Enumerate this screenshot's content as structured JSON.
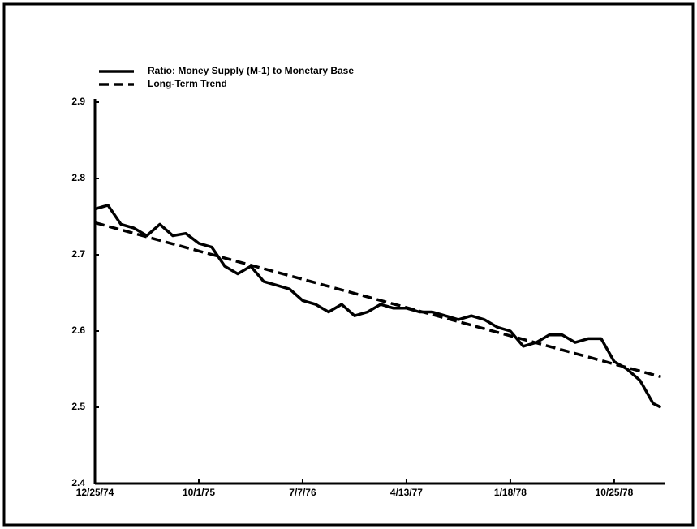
{
  "chart_data": {
    "type": "line",
    "series": [
      {
        "name": "Ratio: Money Supply (M-1) to Monetary Base",
        "color": "#000000",
        "dash": false,
        "x": [
          "12/25/74",
          "1/29/75",
          "3/5/75",
          "4/9/75",
          "5/14/75",
          "6/18/75",
          "7/23/75",
          "8/27/75",
          "10/1/75",
          "11/5/75",
          "12/10/75",
          "1/14/76",
          "2/18/76",
          "3/24/76",
          "4/28/76",
          "6/2/76",
          "7/7/76",
          "8/11/76",
          "9/15/76",
          "10/20/76",
          "11/24/76",
          "12/29/76",
          "2/2/77",
          "3/9/77",
          "4/13/77",
          "5/18/77",
          "6/22/77",
          "7/27/77",
          "8/31/77",
          "10/5/77",
          "11/9/77",
          "12/14/77",
          "1/18/78",
          "2/22/78",
          "3/29/78",
          "5/3/78",
          "6/7/78",
          "7/12/78",
          "8/16/78",
          "9/20/78",
          "10/25/78",
          "11/29/78",
          "1/3/79",
          "2/7/79",
          "2/28/79"
        ],
        "values": [
          2.76,
          2.765,
          2.74,
          2.735,
          2.725,
          2.74,
          2.725,
          2.728,
          2.715,
          2.71,
          2.685,
          2.675,
          2.685,
          2.665,
          2.66,
          2.655,
          2.64,
          2.635,
          2.625,
          2.635,
          2.62,
          2.625,
          2.635,
          2.63,
          2.63,
          2.625,
          2.625,
          2.62,
          2.615,
          2.62,
          2.615,
          2.605,
          2.6,
          2.58,
          2.585,
          2.595,
          2.595,
          2.585,
          2.59,
          2.59,
          2.56,
          2.55,
          2.535,
          2.505,
          2.5
        ]
      },
      {
        "name": "Long-Term Trend",
        "color": "#000000",
        "dash": true,
        "x": [
          "12/25/74",
          "2/28/79"
        ],
        "values": [
          2.742,
          2.54
        ]
      }
    ],
    "xlim": [
      "12/25/74",
      "3/12/79"
    ],
    "xticks": [
      "12/25/74",
      "10/1/75",
      "7/7/76",
      "4/13/77",
      "1/18/78",
      "10/25/78"
    ],
    "ylim": [
      2.4,
      2.9
    ],
    "yticks": [
      2.4,
      2.5,
      2.6,
      2.7,
      2.8,
      2.9
    ],
    "grid": false,
    "legend": "top-left"
  }
}
